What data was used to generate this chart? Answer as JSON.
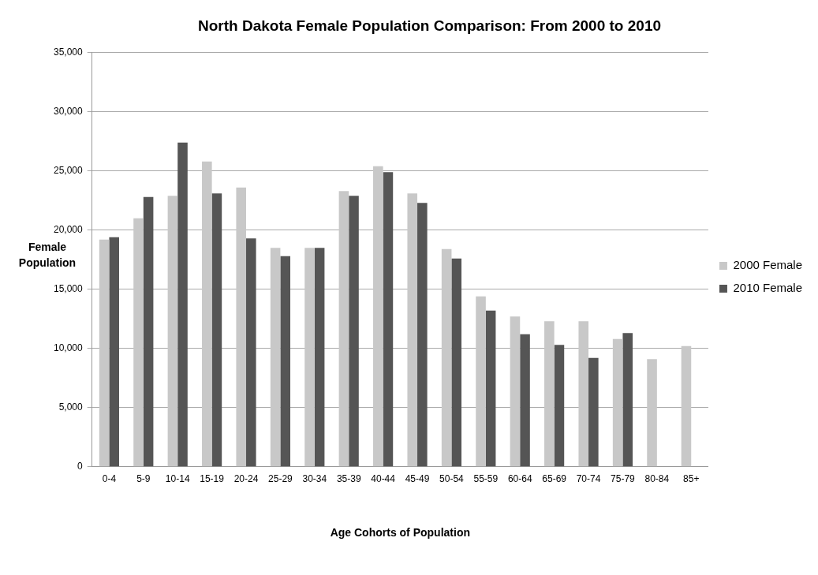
{
  "chart_data": {
    "type": "bar",
    "title": "North Dakota Female Population Comparison: From 2000 to 2010",
    "xlabel": "Age Cohorts of Population",
    "ylabel": "Female Population",
    "categories": [
      "0-4",
      "5-9",
      "10-14",
      "15-19",
      "20-24",
      "25-29",
      "30-34",
      "35-39",
      "40-44",
      "45-49",
      "50-54",
      "55-59",
      "60-64",
      "65-69",
      "70-74",
      "75-79",
      "80-84",
      "85+"
    ],
    "series": [
      {
        "name": "2000 Female",
        "color": "#c8c8c8",
        "values": [
          19200,
          21000,
          22900,
          25800,
          23600,
          18500,
          18500,
          23300,
          25400,
          23100,
          18400,
          14400,
          12700,
          12300,
          12300,
          10800,
          9100,
          10200
        ]
      },
      {
        "name": "2010 Female",
        "color": "#555555",
        "values": [
          19400,
          22800,
          27400,
          23100,
          19300,
          17800,
          18500,
          22900,
          24900,
          22300,
          17600,
          13200,
          11200,
          10300,
          9200,
          11300,
          null,
          null
        ]
      }
    ],
    "ylim": [
      0,
      35000
    ],
    "yticks": [
      0,
      {
        "value": 5000,
        "label": "5,000"
      },
      {
        "value": 10000,
        "label": "10,000"
      },
      {
        "value": 15000,
        "label": "15,000"
      },
      {
        "value": 20000,
        "label": "20,000"
      },
      {
        "value": 25000,
        "label": "25,000"
      },
      {
        "value": 30000,
        "label": "30,000"
      },
      {
        "value": 35000,
        "label": "35,000"
      }
    ],
    "grid": "y",
    "legend": "right"
  }
}
